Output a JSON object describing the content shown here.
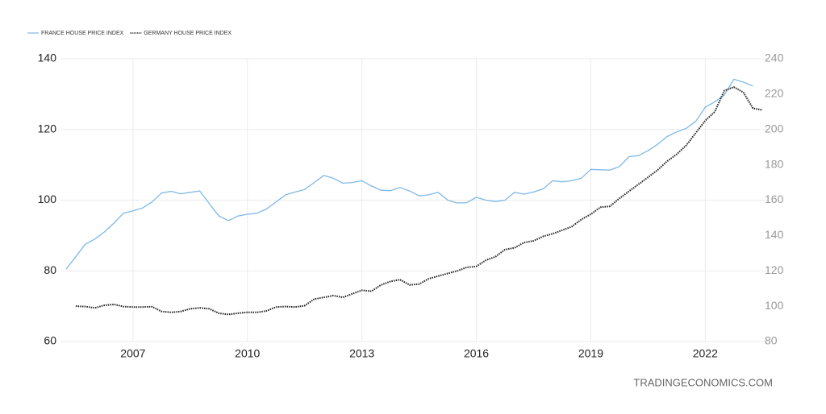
{
  "chart_data": {
    "type": "line",
    "watermark": "TRADINGECONOMICS.COM",
    "xlim": [
      2005.1,
      2023.6
    ],
    "xticks": [
      2007,
      2010,
      2013,
      2016,
      2019,
      2022
    ],
    "ylim": [
      60,
      140
    ],
    "yticks": [
      60,
      80,
      100,
      120,
      140
    ],
    "y2lim": [
      80,
      240
    ],
    "y2ticks": [
      80,
      100,
      120,
      140,
      160,
      180,
      200,
      220,
      240
    ],
    "grid": true,
    "legend": "top-left",
    "series": [
      {
        "name": "FRANCE HOUSE PRICE INDEX",
        "color": "#7fb8e8",
        "axis": "y",
        "x": [
          2005.25,
          2005.5,
          2005.75,
          2006,
          2006.25,
          2006.5,
          2006.75,
          2007,
          2007.25,
          2007.5,
          2007.75,
          2008,
          2008.25,
          2008.5,
          2008.75,
          2009,
          2009.25,
          2009.5,
          2009.75,
          2010,
          2010.25,
          2010.5,
          2010.75,
          2011,
          2011.25,
          2011.5,
          2011.75,
          2012,
          2012.25,
          2012.5,
          2012.75,
          2013,
          2013.25,
          2013.5,
          2013.75,
          2014,
          2014.25,
          2014.5,
          2014.75,
          2015,
          2015.25,
          2015.5,
          2015.75,
          2016,
          2016.25,
          2016.5,
          2016.75,
          2017,
          2017.25,
          2017.5,
          2017.75,
          2018,
          2018.25,
          2018.5,
          2018.75,
          2019,
          2019.25,
          2019.5,
          2019.75,
          2020,
          2020.25,
          2020.5,
          2020.75,
          2021,
          2021.25,
          2021.5,
          2021.75,
          2022,
          2022.25,
          2022.5,
          2022.75,
          2023,
          2023.25
        ],
        "values": [
          80.5,
          84,
          87.5,
          89,
          91,
          93.5,
          96.3,
          97,
          97.8,
          99.5,
          102,
          102.5,
          101.8,
          102.2,
          102.6,
          99,
          95.5,
          94.2,
          95.5,
          96,
          96.3,
          97.5,
          99.5,
          101.5,
          102.3,
          103,
          105,
          107,
          106.2,
          104.8,
          105,
          105.5,
          104,
          102.8,
          102.7,
          103.6,
          102.6,
          101.2,
          101.5,
          102.2,
          100,
          99.2,
          99.3,
          100.8,
          100,
          99.6,
          100,
          102.2,
          101.7,
          102.3,
          103.2,
          105.5,
          105.2,
          105.5,
          106.2,
          108.7,
          108.6,
          108.5,
          109.5,
          112.3,
          112.6,
          114,
          115.8,
          118,
          119.3,
          120.3,
          122.3,
          126.3,
          127.8,
          129.8,
          134.2,
          133.4,
          132.3
        ]
      },
      {
        "name": "GERMANY HOUSE PRICE INDEX",
        "color": "#222222",
        "axis": "y2",
        "x": [
          2005.5,
          2005.75,
          2006,
          2006.25,
          2006.5,
          2006.75,
          2007,
          2007.25,
          2007.5,
          2007.75,
          2008,
          2008.25,
          2008.5,
          2008.75,
          2009,
          2009.25,
          2009.5,
          2009.75,
          2010,
          2010.25,
          2010.5,
          2010.75,
          2011,
          2011.25,
          2011.5,
          2011.75,
          2012,
          2012.25,
          2012.5,
          2012.75,
          2013,
          2013.25,
          2013.5,
          2013.75,
          2014,
          2014.25,
          2014.5,
          2014.75,
          2015,
          2015.25,
          2015.5,
          2015.75,
          2016,
          2016.25,
          2016.5,
          2016.75,
          2017,
          2017.25,
          2017.5,
          2017.75,
          2018,
          2018.25,
          2018.5,
          2018.75,
          2019,
          2019.25,
          2019.5,
          2019.75,
          2020,
          2020.25,
          2020.5,
          2020.75,
          2021,
          2021.25,
          2021.5,
          2021.75,
          2022,
          2022.25,
          2022.5,
          2022.75,
          2023,
          2023.25,
          2023.5
        ],
        "values": [
          100,
          99.8,
          99,
          100.5,
          101,
          99.8,
          99.5,
          99.5,
          99.7,
          97,
          96.5,
          97,
          98.5,
          99,
          98.5,
          96,
          95.3,
          96,
          96.5,
          96.5,
          97.3,
          99.5,
          99.8,
          99.5,
          100.3,
          104,
          105,
          106,
          105,
          107,
          109,
          108.5,
          112,
          114,
          115,
          112,
          112.5,
          115.5,
          117,
          118.5,
          120,
          122,
          122.5,
          126,
          128,
          132,
          133,
          136,
          137,
          139.5,
          141,
          143,
          145,
          149,
          152,
          156,
          156.5,
          161,
          165,
          169,
          173,
          177,
          182,
          186,
          191,
          198,
          205,
          210,
          222,
          224,
          221,
          212,
          211
        ]
      }
    ]
  }
}
